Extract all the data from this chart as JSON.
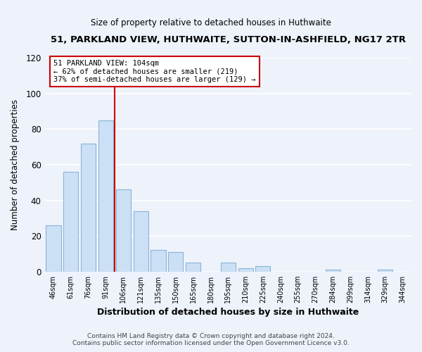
{
  "title": "51, PARKLAND VIEW, HUTHWAITE, SUTTON-IN-ASHFIELD, NG17 2TR",
  "subtitle": "Size of property relative to detached houses in Huthwaite",
  "xlabel": "Distribution of detached houses by size in Huthwaite",
  "ylabel": "Number of detached properties",
  "bar_labels": [
    "46sqm",
    "61sqm",
    "76sqm",
    "91sqm",
    "106sqm",
    "121sqm",
    "135sqm",
    "150sqm",
    "165sqm",
    "180sqm",
    "195sqm",
    "210sqm",
    "225sqm",
    "240sqm",
    "255sqm",
    "270sqm",
    "284sqm",
    "299sqm",
    "314sqm",
    "329sqm",
    "344sqm"
  ],
  "bar_values": [
    26,
    56,
    72,
    85,
    46,
    34,
    12,
    11,
    5,
    0,
    5,
    2,
    3,
    0,
    0,
    0,
    1,
    0,
    0,
    1,
    0
  ],
  "bar_color": "#cce0f5",
  "bar_edge_color": "#8ab4d8",
  "highlight_line_color": "#cc0000",
  "annotation_title": "51 PARKLAND VIEW: 104sqm",
  "annotation_line1": "← 62% of detached houses are smaller (219)",
  "annotation_line2": "37% of semi-detached houses are larger (129) →",
  "annotation_box_color": "#ffffff",
  "annotation_box_edge": "#cc0000",
  "ylim": [
    0,
    120
  ],
  "yticks": [
    0,
    20,
    40,
    60,
    80,
    100,
    120
  ],
  "footer1": "Contains HM Land Registry data © Crown copyright and database right 2024.",
  "footer2": "Contains public sector information licensed under the Open Government Licence v3.0.",
  "bg_color": "#eef2fb",
  "plot_bg_color": "#eef2fb",
  "grid_color": "#ffffff",
  "title_fontsize": 9.5,
  "subtitle_fontsize": 8.5
}
